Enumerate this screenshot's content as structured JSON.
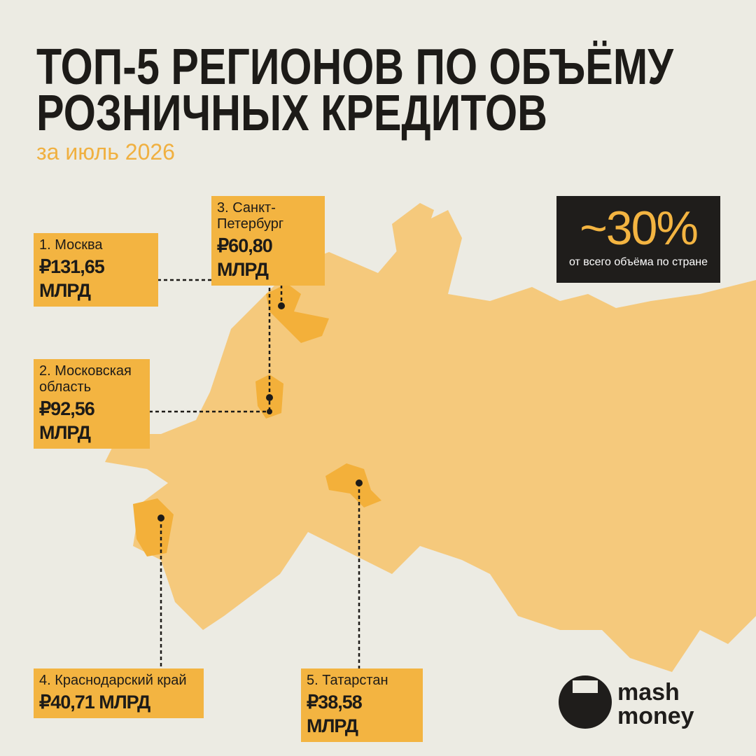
{
  "header": {
    "title_lines": [
      "ТОП-5 РЕГИОНОВ ПО ОБЪЁМУ",
      "РОЗНИЧНЫХ КРЕДИТОВ"
    ],
    "subtitle": "за июль 2026"
  },
  "regions": [
    {
      "name": "1. Москва",
      "value": "₽131,65 МЛРД"
    },
    {
      "name": "2. Московская область",
      "value": "₽92,56 МЛРД"
    },
    {
      "name": "3. Санкт-Петербург",
      "value": "₽60,80 МЛРД"
    },
    {
      "name": "4. Краснодарский край",
      "value": "₽40,71 МЛРД"
    },
    {
      "name": "5. Татарстан",
      "value": "₽38,58 МЛРД"
    }
  ],
  "callout": {
    "value": "~30%",
    "caption": "от всего объёма по стране"
  },
  "logo": {
    "lines": [
      "mash",
      "money"
    ]
  }
}
